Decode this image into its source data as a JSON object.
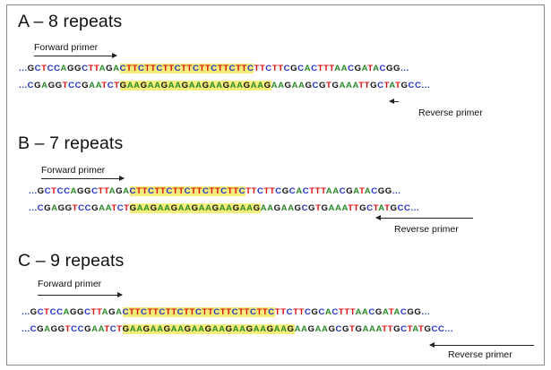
{
  "colors": {
    "A": "#2a8a2a",
    "C": "#2233cc",
    "G": "#111111",
    "T": "#dd1111",
    "dot": "#2233cc",
    "highlight": "#f3ee7a"
  },
  "panels": [
    {
      "title": "A – 8 repeats",
      "forward_label": "Forward primer",
      "reverse_label": "Reverse primer",
      "top_strand": "...GCTCCAGGCTTAGACTTCTTCTTCTTCTTCTTCTTCTTCTTCGCACTTTAACGATACGG...",
      "bottom_strand": "...CGAGGTCCGAATCTGAAGAAGAAGAAGAAGAAGAAGAAGAAGCGTGAAATTGCTATGCC..."
    },
    {
      "title": "B – 7 repeats",
      "forward_label": "Forward primer",
      "reverse_label": "Reverse primer",
      "top_strand": "...GCTCCAGGCTTAGACTTCTTCTTCTTCTTCTTCTTCTTCGCACTTTAACGATACGG...",
      "bottom_strand": "...CGAGGTCCGAATCTGAAGAAGAAGAAGAAGAAGAAGAAGCGTGAAATTGCTATGCC..."
    },
    {
      "title": "C – 9 repeats",
      "forward_label": "Forward primer",
      "reverse_label": "Reverse primer",
      "top_strand": "...GCTCCAGGCTTAGACTTCTTCTTCTTCTTCTTCTTCTTCTTCTTCGCACTTTAACGATACGG...",
      "bottom_strand": "...CGAGGTCCGAATCTGAAGAAGAAGAAGAAGAAGAAGAAGAAGAAGCGTGAAATTGCTATGCC..."
    }
  ]
}
